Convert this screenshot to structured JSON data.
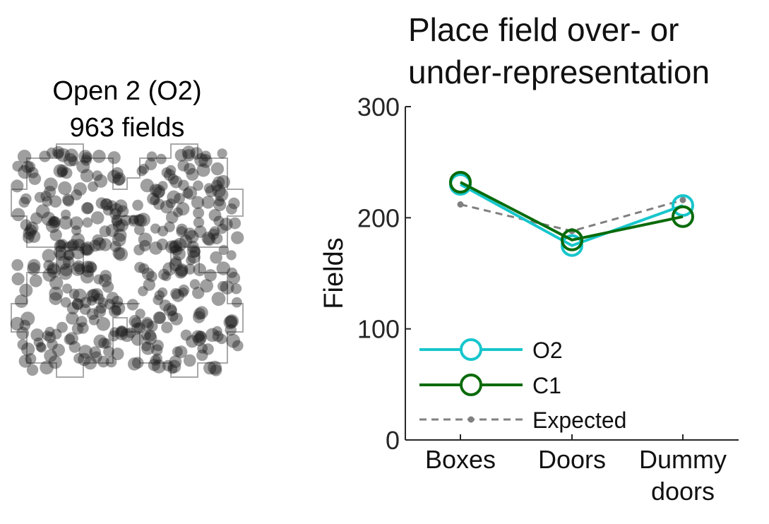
{
  "left_panel": {
    "title_line1": "Open 2 (O2)",
    "title_line2": "963 fields"
  },
  "chart_data": {
    "type": "line",
    "title_line1": "Place field over- or",
    "title_line2": "under-representation",
    "ylabel": "Fields",
    "xlabel": "",
    "categories": [
      [
        "Boxes"
      ],
      [
        "Doors"
      ],
      [
        "Dummy",
        "doors"
      ]
    ],
    "ylim": [
      0,
      300
    ],
    "yticks": [
      0,
      100,
      200,
      300
    ],
    "grid": false,
    "legend_position": "bottom-left",
    "series": [
      {
        "name": "O2",
        "values": [
          230,
          175,
          211
        ],
        "color": "#17c6cc",
        "marker": "open-circle",
        "style": "solid"
      },
      {
        "name": "C1",
        "values": [
          232,
          180,
          201
        ],
        "color": "#0a6b0a",
        "marker": "open-circle",
        "style": "solid"
      },
      {
        "name": "Expected",
        "values": [
          212,
          188,
          216
        ],
        "color": "#808080",
        "marker": "dot",
        "style": "dashed"
      }
    ]
  },
  "colors": {
    "field_dot": "#1a1a1a",
    "arena_outline": "#a9a9a9",
    "axis": "#262626"
  },
  "field_count": 963
}
